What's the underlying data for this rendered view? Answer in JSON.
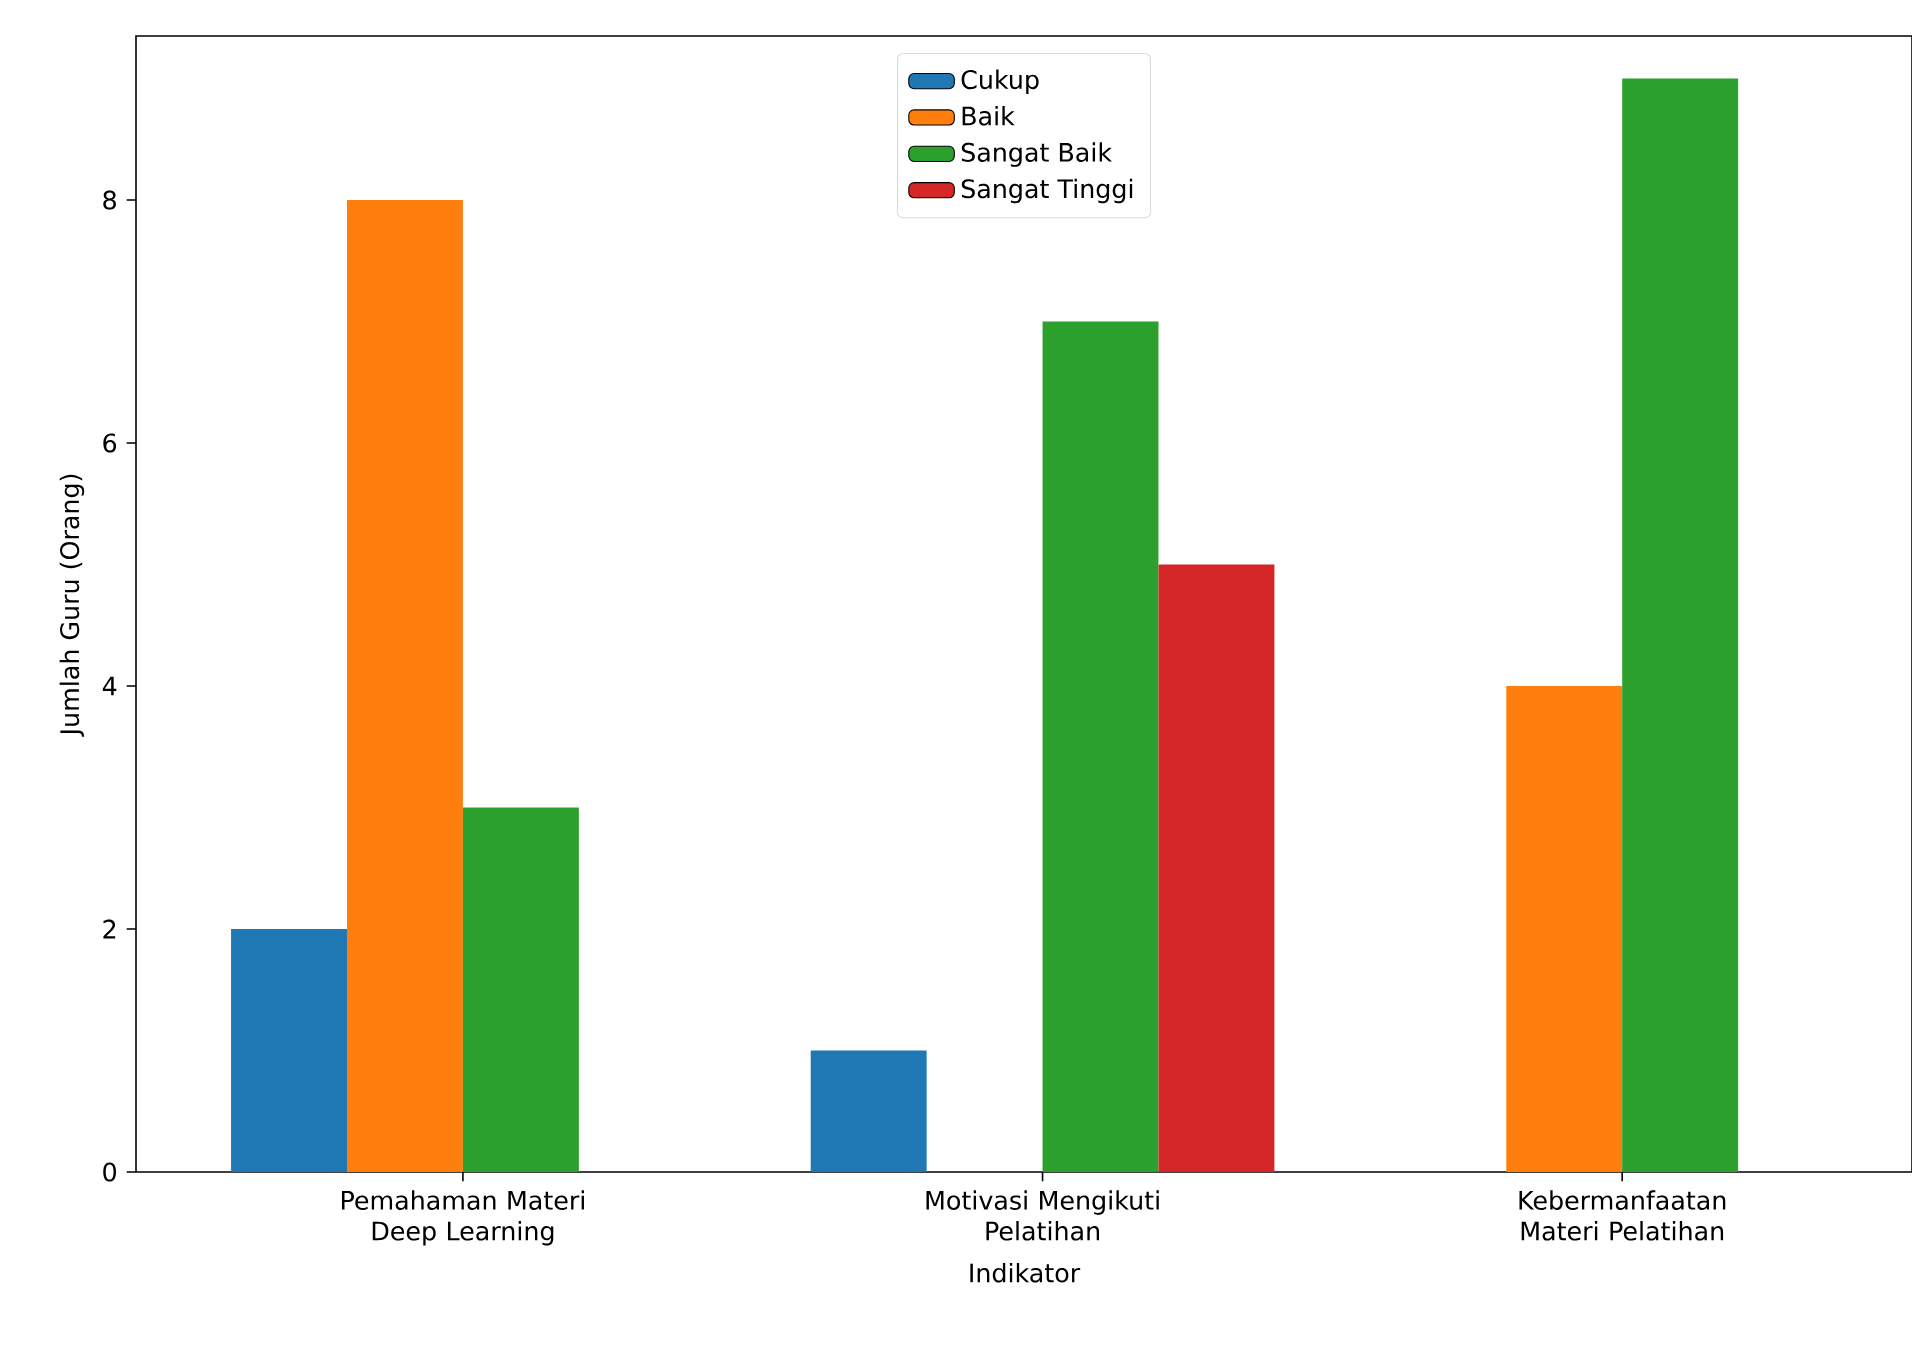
{
  "chart_data": {
    "type": "bar",
    "xlabel": "Indikator",
    "ylabel": "Jumlah Guru (Orang)",
    "categories": [
      "Pemahaman Materi Deep Learning",
      "Motivasi Mengikuti Pelatihan",
      "Kebermanfaatan Materi Pelatihan"
    ],
    "series": [
      {
        "name": "Cukup",
        "color": "#1f77b4",
        "values": [
          2,
          1,
          0
        ]
      },
      {
        "name": "Baik",
        "color": "#ff7f0e",
        "values": [
          8,
          0,
          4
        ]
      },
      {
        "name": "Sangat Baik",
        "color": "#2ca02c",
        "values": [
          3,
          7,
          9
        ]
      },
      {
        "name": "Sangat Tinggi",
        "color": "#d62728",
        "values": [
          0,
          5,
          0
        ]
      }
    ],
    "ylim": [
      0,
      9.35
    ],
    "yticks": [
      0,
      2,
      4,
      6,
      8
    ],
    "legend": "top"
  }
}
